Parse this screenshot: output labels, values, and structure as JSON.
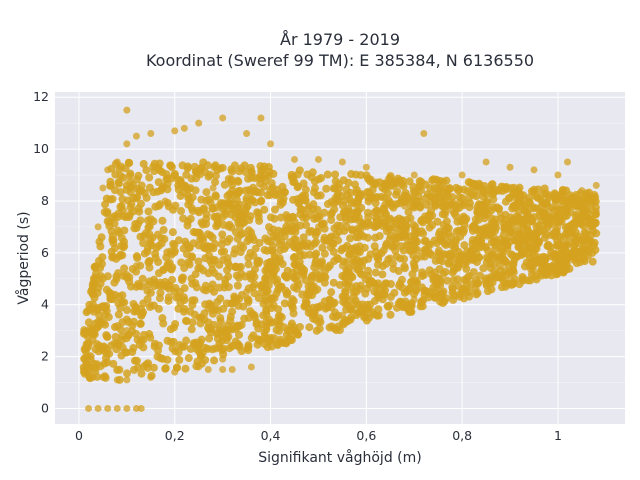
{
  "chart_data": {
    "type": "scatter",
    "title_line1": "År 1979 - 2019",
    "title_line2": "Koordinat (Sweref 99 TM): E 385384, N 6136550",
    "xlabel": "Signifikant våghöjd (m)",
    "ylabel": "Vågperiod (s)",
    "xlim": [
      -0.05,
      1.14
    ],
    "ylim": [
      -0.6,
      12.2
    ],
    "x_ticks": [
      0,
      0.2,
      0.4,
      0.6,
      0.8,
      1.0
    ],
    "x_tick_labels": [
      "0",
      "0,2",
      "0,4",
      "0,6",
      "0,8",
      "1"
    ],
    "y_ticks": [
      0,
      2,
      4,
      6,
      8,
      10,
      12
    ],
    "y_tick_labels": [
      "0",
      "2",
      "4",
      "6",
      "8",
      "10",
      "12"
    ],
    "grid": true,
    "marker_color": "#d4a21f",
    "background_color": "#e8e8f0",
    "note": "Dense point cloud; points summarized as envelope samples",
    "series": [
      {
        "points": [
          [
            0.02,
            0.0
          ],
          [
            0.04,
            0.0
          ],
          [
            0.06,
            0.0
          ],
          [
            0.08,
            0.0
          ],
          [
            0.1,
            0.0
          ],
          [
            0.12,
            0.0
          ],
          [
            0.13,
            0.0
          ],
          [
            0.01,
            1.5
          ],
          [
            0.02,
            1.3
          ],
          [
            0.03,
            1.2
          ],
          [
            0.05,
            1.2
          ],
          [
            0.08,
            1.1
          ],
          [
            0.1,
            1.1
          ],
          [
            0.15,
            1.2
          ],
          [
            0.2,
            1.4
          ],
          [
            0.25,
            1.6
          ],
          [
            0.3,
            1.9
          ],
          [
            0.35,
            2.3
          ],
          [
            0.4,
            2.6
          ],
          [
            0.45,
            3.0
          ],
          [
            0.5,
            3.3
          ],
          [
            0.55,
            3.6
          ],
          [
            0.6,
            3.8
          ],
          [
            0.65,
            4.0
          ],
          [
            0.7,
            4.2
          ],
          [
            0.75,
            4.4
          ],
          [
            0.8,
            4.6
          ],
          [
            0.85,
            4.8
          ],
          [
            0.9,
            5.0
          ],
          [
            0.95,
            5.3
          ],
          [
            1.0,
            5.7
          ],
          [
            1.05,
            6.5
          ],
          [
            1.08,
            7.6
          ],
          [
            0.02,
            2.5
          ],
          [
            0.03,
            5.0
          ],
          [
            0.04,
            7.0
          ],
          [
            0.05,
            8.5
          ],
          [
            0.06,
            9.2
          ],
          [
            0.08,
            9.5
          ],
          [
            0.1,
            10.2
          ],
          [
            0.1,
            11.5
          ],
          [
            0.12,
            10.5
          ],
          [
            0.15,
            10.6
          ],
          [
            0.2,
            10.7
          ],
          [
            0.22,
            10.8
          ],
          [
            0.25,
            11.0
          ],
          [
            0.3,
            11.2
          ],
          [
            0.35,
            10.6
          ],
          [
            0.38,
            11.2
          ],
          [
            0.4,
            10.2
          ],
          [
            0.45,
            9.6
          ],
          [
            0.5,
            9.6
          ],
          [
            0.55,
            9.5
          ],
          [
            0.6,
            9.3
          ],
          [
            0.65,
            8.9
          ],
          [
            0.7,
            9.0
          ],
          [
            0.72,
            10.6
          ],
          [
            0.75,
            8.7
          ],
          [
            0.8,
            9.0
          ],
          [
            0.85,
            9.5
          ],
          [
            0.9,
            9.3
          ],
          [
            0.95,
            9.2
          ],
          [
            1.0,
            9.0
          ],
          [
            1.02,
            9.5
          ],
          [
            1.05,
            8.4
          ],
          [
            1.08,
            8.6
          ],
          [
            0.2,
            6.0
          ],
          [
            0.3,
            6.5
          ],
          [
            0.4,
            6.8
          ],
          [
            0.5,
            7.0
          ],
          [
            0.6,
            7.0
          ],
          [
            0.7,
            6.9
          ],
          [
            0.8,
            6.9
          ],
          [
            0.9,
            6.8
          ],
          [
            1.0,
            7.0
          ],
          [
            0.15,
            4.0
          ],
          [
            0.25,
            3.5
          ],
          [
            0.35,
            4.5
          ],
          [
            0.45,
            5.0
          ],
          [
            0.55,
            5.5
          ],
          [
            0.65,
            5.8
          ],
          [
            0.75,
            6.0
          ],
          [
            0.85,
            6.2
          ],
          [
            0.95,
            6.5
          ],
          [
            0.1,
            3.0
          ],
          [
            0.12,
            5.5
          ],
          [
            0.18,
            8.0
          ],
          [
            0.28,
            8.5
          ],
          [
            0.38,
            8.0
          ],
          [
            0.48,
            7.8
          ],
          [
            0.58,
            7.6
          ],
          [
            0.68,
            7.8
          ],
          [
            0.78,
            7.6
          ],
          [
            0.88,
            7.5
          ],
          [
            0.98,
            7.6
          ],
          [
            0.3,
            1.5
          ],
          [
            0.32,
            1.5
          ],
          [
            0.36,
            1.6
          ],
          [
            0.27,
            1.5
          ]
        ]
      }
    ]
  }
}
